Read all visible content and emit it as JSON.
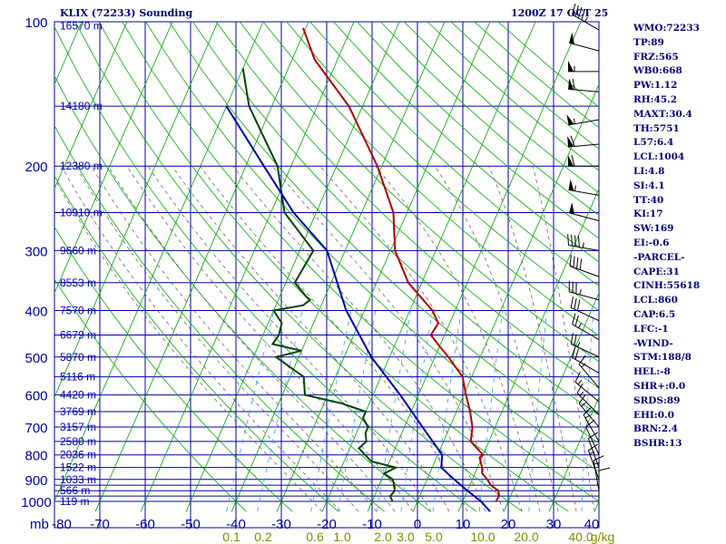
{
  "header": {
    "station_title": "KLIX (72233) Sounding",
    "valid_time": "1200Z 17 OCT 25"
  },
  "stats": [
    "WMO:72233",
    "TP:89",
    "FRZ:565",
    "WB0:668",
    "PW:1.12",
    "RH:45.2",
    "MAXT:30.4",
    "TH:5751",
    "L57:6.4",
    "LCL:1004",
    "LI:4.8",
    "SI:4.1",
    "TT:40",
    "KI:17",
    "SW:169",
    "EI:-0.6",
    "-PARCEL-",
    "CAPE:31",
    "CINH:55618",
    "LCL:860",
    "CAP:6.5",
    "LFC:-1",
    "-WIND-",
    "STM:188/8",
    "HEL:-8",
    "SHR+:0.0",
    "SRDS:89",
    "EHI:0.0",
    "BRN:2.4",
    "BSHR:13"
  ],
  "chart_data": {
    "type": "line",
    "title": "KLIX (72233) Sounding",
    "subtitle": "1200Z 17 OCT 25",
    "x_unit_label": "mb",
    "x_ticks": [
      -80,
      -70,
      -60,
      -50,
      -40,
      -30,
      -20,
      -10,
      0,
      10,
      20,
      30,
      40
    ],
    "y_ticks": [
      100,
      200,
      300,
      400,
      500,
      600,
      700,
      800,
      900,
      1000
    ],
    "y_scale": "log",
    "ylim": [
      100,
      1050
    ],
    "xlim": [
      -80,
      40
    ],
    "mixing_ratio_labels": [
      "0.1",
      "0.2",
      "0.6",
      "1.0",
      "2.0",
      "3.0",
      "5.0",
      "10.0",
      "20.0",
      "40.0",
      "g/kg"
    ],
    "height_labels": [
      {
        "p": 102,
        "t": "16570 m"
      },
      {
        "p": 150,
        "t": "14180 m"
      },
      {
        "p": 200,
        "t": "12380 m"
      },
      {
        "p": 250,
        "t": "10910 m"
      },
      {
        "p": 300,
        "t": "9660 m"
      },
      {
        "p": 350,
        "t": "8553 m"
      },
      {
        "p": 400,
        "t": "7570 m"
      },
      {
        "p": 450,
        "t": "6679 m"
      },
      {
        "p": 500,
        "t": "5870 m"
      },
      {
        "p": 550,
        "t": "5116 m"
      },
      {
        "p": 600,
        "t": "4420 m"
      },
      {
        "p": 650,
        "t": "3769 m"
      },
      {
        "p": 700,
        "t": "3157 m"
      },
      {
        "p": 750,
        "t": "2580 m"
      },
      {
        "p": 800,
        "t": "2036 m"
      },
      {
        "p": 850,
        "t": "1522 m"
      },
      {
        "p": 900,
        "t": "1033 m"
      },
      {
        "p": 950,
        "t": "566 m"
      },
      {
        "p": 1000,
        "t": "119 m"
      }
    ],
    "series": [
      {
        "color": "#b00000",
        "points": [
          [
            103,
            -70.6
          ],
          [
            120,
            -65
          ],
          [
            150,
            -53
          ],
          [
            200,
            -41
          ],
          [
            250,
            -33
          ],
          [
            300,
            -29
          ],
          [
            350,
            -23
          ],
          [
            400,
            -15
          ],
          [
            425,
            -12.5
          ],
          [
            450,
            -13
          ],
          [
            475,
            -10
          ],
          [
            500,
            -7
          ],
          [
            550,
            -2
          ],
          [
            600,
            0.5
          ],
          [
            650,
            3
          ],
          [
            700,
            5
          ],
          [
            750,
            6
          ],
          [
            800,
            10
          ],
          [
            810,
            9.5
          ],
          [
            850,
            11
          ],
          [
            875,
            11.6
          ],
          [
            900,
            13.3
          ],
          [
            925,
            14.6
          ],
          [
            950,
            16.8
          ],
          [
            975,
            17.5
          ],
          [
            1000,
            17.3
          ]
        ]
      },
      {
        "color": "#004400",
        "points": [
          [
            125,
            -80
          ],
          [
            150,
            -75
          ],
          [
            200,
            -63
          ],
          [
            250,
            -57
          ],
          [
            300,
            -47
          ],
          [
            350,
            -48
          ],
          [
            375,
            -44
          ],
          [
            380,
            -43
          ],
          [
            390,
            -44
          ],
          [
            400,
            -50
          ],
          [
            425,
            -47
          ],
          [
            450,
            -46.5
          ],
          [
            470,
            -47
          ],
          [
            485,
            -40
          ],
          [
            500,
            -45
          ],
          [
            550,
            -37
          ],
          [
            600,
            -35
          ],
          [
            625,
            -26
          ],
          [
            650,
            -20
          ],
          [
            670,
            -20
          ],
          [
            700,
            -18
          ],
          [
            720,
            -18
          ],
          [
            750,
            -17
          ],
          [
            775,
            -18
          ],
          [
            800,
            -16
          ],
          [
            825,
            -14
          ],
          [
            850,
            -8
          ],
          [
            875,
            -10
          ],
          [
            900,
            -7.5
          ],
          [
            950,
            -6
          ],
          [
            975,
            -6.5
          ],
          [
            1000,
            -5.5
          ]
        ]
      },
      {
        "color": "#0000b0",
        "points": [
          [
            150,
            -80
          ],
          [
            200,
            -66
          ],
          [
            250,
            -55
          ],
          [
            300,
            -44
          ],
          [
            400,
            -34
          ],
          [
            500,
            -24
          ],
          [
            600,
            -14
          ],
          [
            700,
            -6
          ],
          [
            800,
            1
          ],
          [
            850,
            2
          ],
          [
            900,
            6
          ],
          [
            950,
            10
          ],
          [
            1000,
            14
          ],
          [
            1050,
            17
          ]
        ]
      }
    ],
    "wind_barbs": [
      {
        "p": 104,
        "dir": 300,
        "spd": 45
      },
      {
        "p": 115,
        "dir": 285,
        "spd": 50
      },
      {
        "p": 127,
        "dir": 270,
        "spd": 55
      },
      {
        "p": 140,
        "dir": 275,
        "spd": 60
      },
      {
        "p": 160,
        "dir": 260,
        "spd": 55
      },
      {
        "p": 180,
        "dir": 265,
        "spd": 60
      },
      {
        "p": 200,
        "dir": 270,
        "spd": 60
      },
      {
        "p": 230,
        "dir": 280,
        "spd": 55
      },
      {
        "p": 260,
        "dir": 285,
        "spd": 50
      },
      {
        "p": 300,
        "dir": 280,
        "spd": 45
      },
      {
        "p": 340,
        "dir": 290,
        "spd": 40
      },
      {
        "p": 380,
        "dir": 285,
        "spd": 35
      },
      {
        "p": 420,
        "dir": 295,
        "spd": 30
      },
      {
        "p": 460,
        "dir": 300,
        "spd": 25
      },
      {
        "p": 500,
        "dir": 295,
        "spd": 25
      },
      {
        "p": 540,
        "dir": 300,
        "spd": 20
      },
      {
        "p": 580,
        "dir": 320,
        "spd": 15
      },
      {
        "p": 620,
        "dir": 310,
        "spd": 15
      },
      {
        "p": 660,
        "dir": 315,
        "spd": 15
      },
      {
        "p": 700,
        "dir": 320,
        "spd": 15
      },
      {
        "p": 750,
        "dir": 330,
        "spd": 15
      },
      {
        "p": 800,
        "dir": 335,
        "spd": 10
      },
      {
        "p": 850,
        "dir": 340,
        "spd": 10
      },
      {
        "p": 900,
        "dir": 340,
        "spd": 15
      },
      {
        "p": 950,
        "dir": 350,
        "spd": 15
      },
      {
        "p": 1000,
        "dir": 360,
        "spd": 10
      }
    ]
  },
  "colors": {
    "grid": "#0000aa",
    "isotherm": "#00a000",
    "dry_adiabat": "#00aa00",
    "moist_adiabat": "#555555",
    "mixing_ratio": "#3399ff",
    "temperature": "#b00000",
    "dewpoint": "#004400",
    "parcel": "#0000b0",
    "axis_text": "#0000aa",
    "mixing_text": "#888800"
  }
}
